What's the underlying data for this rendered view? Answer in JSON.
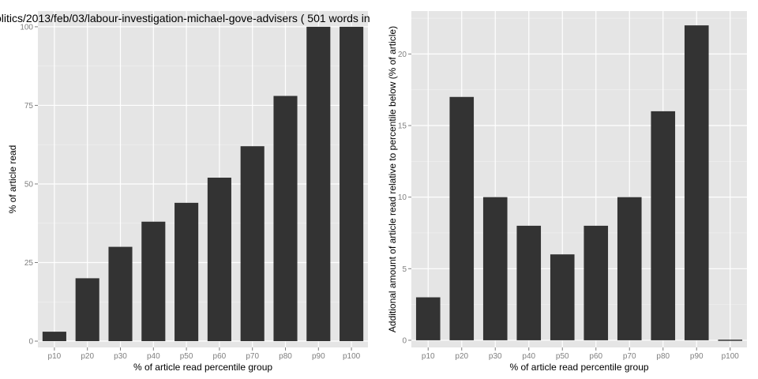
{
  "chart_data": [
    {
      "type": "bar",
      "title": "olitics/2013/feb/03/labour-investigation-michael-gove-advisers ( 501 words in",
      "xlabel": "% of article read percentile group",
      "ylabel": "% of article read",
      "categories": [
        "p10",
        "p20",
        "p30",
        "p40",
        "p50",
        "p60",
        "p70",
        "p80",
        "p90",
        "p100"
      ],
      "values": [
        3,
        20,
        30,
        38,
        44,
        52,
        62,
        78,
        100,
        100
      ],
      "ylim": [
        -2,
        105
      ],
      "yticks": [
        0,
        25,
        50,
        75,
        100
      ],
      "grid": true
    },
    {
      "type": "bar",
      "title": "",
      "xlabel": "% of article read percentile group",
      "ylabel": "Additional amount of article read relative to percentile below (% of article)",
      "categories": [
        "p10",
        "p20",
        "p30",
        "p40",
        "p50",
        "p60",
        "p70",
        "p80",
        "p90",
        "p100"
      ],
      "values": [
        3,
        17,
        10,
        8,
        6,
        8,
        10,
        16,
        22,
        0
      ],
      "ylim": [
        -0.5,
        23
      ],
      "yticks": [
        0,
        5,
        10,
        15,
        20
      ],
      "grid": true
    }
  ]
}
